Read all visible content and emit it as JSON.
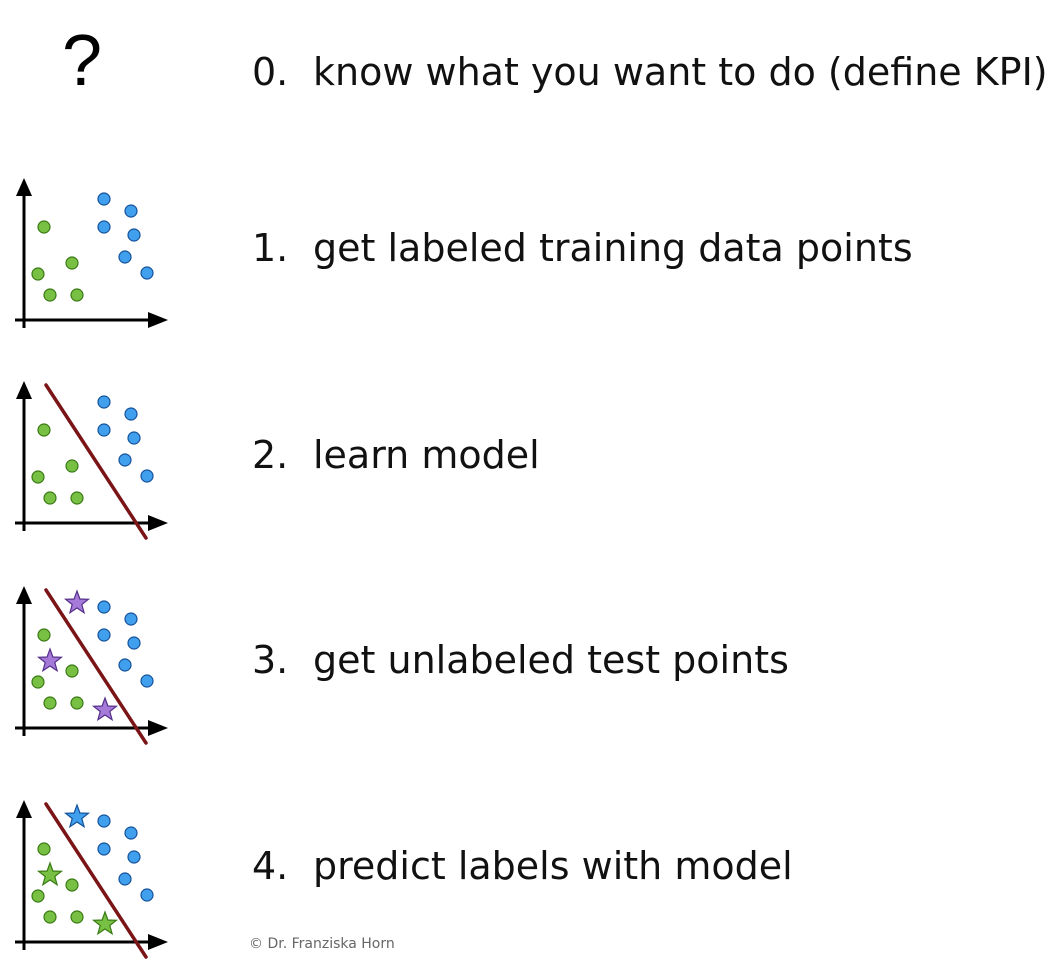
{
  "question_mark": "?",
  "steps": [
    {
      "number": "0.",
      "text": "know what you want to do (define KPI)"
    },
    {
      "number": "1.",
      "text": "get labeled training data points"
    },
    {
      "number": "2.",
      "text": "learn model"
    },
    {
      "number": "3.",
      "text": "get unlabeled test points"
    },
    {
      "number": "4.",
      "text": "predict labels with model"
    }
  ],
  "copyright": "© Dr. Franziska Horn",
  "colors": {
    "green": "#77c043",
    "green_stroke": "#3a7a14",
    "blue": "#40a0ee",
    "blue_stroke": "#15529a",
    "purple": "#a57ad8",
    "purple_stroke": "#55308a",
    "decision_line": "#7a1416",
    "axis": "#000000"
  },
  "panels": [
    {
      "shows_line": false,
      "test_points": "none"
    },
    {
      "shows_line": true,
      "test_points": "none"
    },
    {
      "shows_line": true,
      "test_points": "unlabeled"
    },
    {
      "shows_line": true,
      "test_points": "predicted"
    }
  ]
}
